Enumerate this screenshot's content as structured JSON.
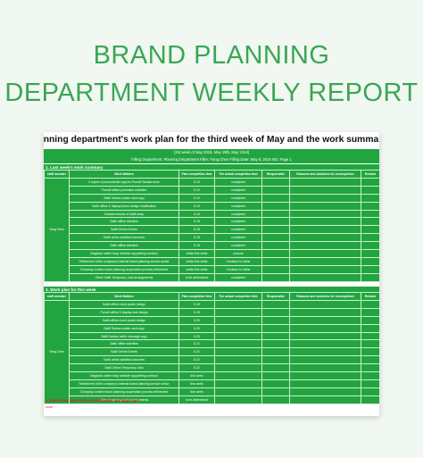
{
  "hero": {
    "line1": "BRAND PLANNING",
    "line2": "DEPARTMENT WEEKLY REPORT"
  },
  "sheet": {
    "title": "anning department's work plan for the third week of May and the work summary of las",
    "subtitle": "(3rd week of May 2015, May 19th, May 22nd)",
    "filling_info": "Filling Department: Planning Department Filler: Fang Chen Filling Date: May 8, 2015 NO. Page 1",
    "section1": "1. Last week's work summary",
    "section2": "2. Work plan for this week",
    "section3": "3. Items that need to be coordinated and approved",
    "none": "none",
    "columns": [
      "staff member",
      "Work Matters",
      "Plan completion time",
      "The actual completion time",
      "Responsible",
      "Reasons and solutions for incompletion",
      "Remark"
    ],
    "staff": "Yang Chen",
    "last_week": [
      {
        "task": "3 copies of promotional copy for Purcell Taobao store",
        "plan": "5-15",
        "actual": "completed"
      },
      {
        "task": "Purcell offline promotion activities",
        "plan": "5-12",
        "actual": "completed"
      },
      {
        "task": "Salt6 Taobao praise card copy",
        "plan": "5-12",
        "actual": "completed"
      },
      {
        "task": "Salt6 offline E display frame design modification",
        "plan": "5-13",
        "actual": "completed"
      },
      {
        "task": "Detailed details of Salt6 body",
        "plan": "5-15",
        "actual": "completed"
      },
      {
        "task": "Salt6 offline activities",
        "plan": "5-15",
        "actual": "completed"
      },
      {
        "task": "Salt6 Online Events",
        "plan": "5-15",
        "actual": "completed"
      },
      {
        "task": "Salt6 online activities launches",
        "plan": "5-15",
        "actual": "completed"
      },
      {
        "task": "Salt6 offline activities",
        "plan": "5-15",
        "actual": "completed"
      },
      {
        "task": "Magician coffee shop website copywriting contract",
        "plan": "within this week",
        "actual": "undone"
      },
      {
        "task": "Refinement of the company's internal brand planning service sector",
        "plan": "within this week",
        "actual": "Continue to refine"
      },
      {
        "task": "Company content brand planning cooperation process refinement",
        "plan": "within this week",
        "actual": "Continue to refine"
      },
      {
        "task": "Offset Salt6 Temporary Jobs Arrangements",
        "plan": "to be determined",
        "actual": "completed"
      }
    ],
    "this_week": [
      {
        "task": "Salt6 offline event poster design",
        "plan": "5-19",
        "actual": ""
      },
      {
        "task": "Purcell offline E display rack design",
        "plan": "5-19",
        "actual": ""
      },
      {
        "task": "Salt6 offline event poster design",
        "plan": "5-20",
        "actual": ""
      },
      {
        "task": "Salt6 Taobao praise card copy",
        "plan": "5-20",
        "actual": ""
      },
      {
        "task": "Salt6 Taobao seller message copy",
        "plan": "5-20",
        "actual": ""
      },
      {
        "task": "Salt6 offline activities",
        "plan": "5-21",
        "actual": ""
      },
      {
        "task": "Salt6 Online Events",
        "plan": "5-21",
        "actual": ""
      },
      {
        "task": "Salt6 online activities launches",
        "plan": "5-22",
        "actual": ""
      },
      {
        "task": "Salt6 Online Temporary Jobs",
        "plan": "5-22",
        "actual": ""
      },
      {
        "task": "Magician coffee shop website copywriting contract",
        "plan": "this week",
        "actual": ""
      },
      {
        "task": "Refinement of the company's internal brand planning service sector",
        "plan": "this week",
        "actual": ""
      },
      {
        "task": "Company content brand planning cooperation process refinement",
        "plan": "this week",
        "actual": ""
      },
      {
        "task": "Other temporary work arrangements",
        "plan": "to be determined",
        "actual": ""
      }
    ]
  }
}
